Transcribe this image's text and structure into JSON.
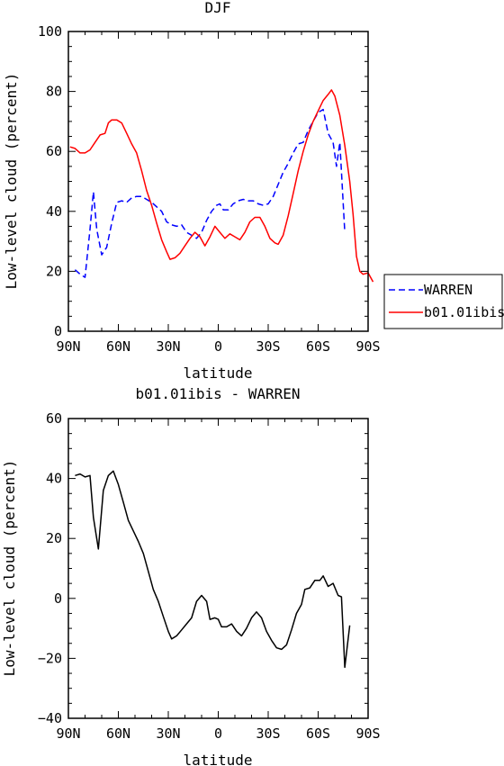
{
  "chart_data": [
    {
      "type": "line",
      "title": "DJF",
      "xlabel": "latitude",
      "ylabel": "Low-level cloud (percent)",
      "xlim": [
        90,
        -90
      ],
      "ylim": [
        0,
        100
      ],
      "xticks": [
        90,
        60,
        30,
        0,
        -30,
        -60,
        -90
      ],
      "xtick_labels": [
        "90N",
        "60N",
        "30N",
        "0",
        "30S",
        "60S",
        "90S"
      ],
      "yticks": [
        0,
        20,
        40,
        60,
        80,
        100
      ],
      "ytick_labels": [
        "0",
        "20",
        "40",
        "60",
        "80",
        "100"
      ],
      "legend_position": "outside-right",
      "series": [
        {
          "name": "WARREN",
          "color": "#0000ff",
          "style": "dashed",
          "points": [
            [
              86,
              20.5
            ],
            [
              83,
              19
            ],
            [
              80,
              18
            ],
            [
              77,
              34
            ],
            [
              75,
              46.5
            ],
            [
              73,
              34
            ],
            [
              70,
              25.5
            ],
            [
              67,
              28
            ],
            [
              64,
              36
            ],
            [
              61,
              43
            ],
            [
              58,
              43.5
            ],
            [
              55,
              43
            ],
            [
              52,
              44.5
            ],
            [
              49,
              45
            ],
            [
              46,
              45
            ],
            [
              43,
              44
            ],
            [
              40,
              43
            ],
            [
              37,
              41.5
            ],
            [
              34,
              40
            ],
            [
              31,
              36.5
            ],
            [
              28,
              35.5
            ],
            [
              25,
              35
            ],
            [
              22,
              35.5
            ],
            [
              19,
              33
            ],
            [
              16,
              32
            ],
            [
              13,
              31
            ],
            [
              10,
              33
            ],
            [
              7,
              37
            ],
            [
              4,
              40
            ],
            [
              1,
              42
            ],
            [
              -1,
              42.5
            ],
            [
              -3,
              40.5
            ],
            [
              -6,
              40.5
            ],
            [
              -9,
              42.5
            ],
            [
              -12,
              43.5
            ],
            [
              -15,
              44
            ],
            [
              -18,
              43.5
            ],
            [
              -21,
              43.5
            ],
            [
              -24,
              42.5
            ],
            [
              -27,
              42
            ],
            [
              -30,
              42.5
            ],
            [
              -33,
              45
            ],
            [
              -36,
              49
            ],
            [
              -39,
              53
            ],
            [
              -42,
              56
            ],
            [
              -45,
              59.5
            ],
            [
              -48,
              62.5
            ],
            [
              -51,
              63
            ],
            [
              -54,
              67
            ],
            [
              -57,
              70
            ],
            [
              -60,
              73
            ],
            [
              -63,
              74
            ],
            [
              -66,
              66
            ],
            [
              -69,
              63
            ],
            [
              -71,
              55
            ],
            [
              -73,
              63
            ],
            [
              -76,
              33
            ]
          ]
        },
        {
          "name": "b01.01ibis",
          "color": "#ff0000",
          "style": "solid",
          "points": [
            [
              89,
              61.5
            ],
            [
              86,
              61
            ],
            [
              83,
              59.5
            ],
            [
              80,
              59.5
            ],
            [
              77,
              60.5
            ],
            [
              74,
              63
            ],
            [
              71,
              65.5
            ],
            [
              68,
              66
            ],
            [
              66,
              69.5
            ],
            [
              64,
              70.5
            ],
            [
              61,
              70.5
            ],
            [
              58,
              69.5
            ],
            [
              55,
              66
            ],
            [
              52,
              62.5
            ],
            [
              49,
              59.5
            ],
            [
              46,
              53.5
            ],
            [
              43,
              47
            ],
            [
              40,
              42
            ],
            [
              37,
              36
            ],
            [
              34,
              30.5
            ],
            [
              31,
              26.5
            ],
            [
              29,
              24
            ],
            [
              26,
              24.5
            ],
            [
              23,
              26
            ],
            [
              20,
              28.5
            ],
            [
              17,
              31
            ],
            [
              14,
              33
            ],
            [
              11,
              31.5
            ],
            [
              8,
              28.5
            ],
            [
              5,
              31.5
            ],
            [
              2,
              35
            ],
            [
              -1,
              33
            ],
            [
              -4,
              31
            ],
            [
              -7,
              32.5
            ],
            [
              -10,
              31.5
            ],
            [
              -13,
              30.5
            ],
            [
              -16,
              33
            ],
            [
              -19,
              36.5
            ],
            [
              -22,
              38
            ],
            [
              -25,
              38
            ],
            [
              -28,
              35
            ],
            [
              -31,
              31
            ],
            [
              -34,
              29.5
            ],
            [
              -36,
              29
            ],
            [
              -39,
              32
            ],
            [
              -42,
              38.5
            ],
            [
              -45,
              46
            ],
            [
              -48,
              53.5
            ],
            [
              -51,
              60
            ],
            [
              -54,
              65.5
            ],
            [
              -57,
              70
            ],
            [
              -60,
              73.5
            ],
            [
              -63,
              77
            ],
            [
              -66,
              79
            ],
            [
              -68,
              80.5
            ],
            [
              -70,
              78.5
            ],
            [
              -73,
              72
            ],
            [
              -76,
              62
            ],
            [
              -79,
              50
            ],
            [
              -81,
              39
            ],
            [
              -83,
              25
            ],
            [
              -85,
              20
            ],
            [
              -87,
              19
            ],
            [
              -90,
              19.5
            ],
            [
              -93,
              16.5
            ]
          ]
        }
      ]
    },
    {
      "type": "line",
      "title": "b01.01ibis - WARREN",
      "xlabel": "latitude",
      "ylabel": "Low-level cloud (percent)",
      "xlim": [
        90,
        -90
      ],
      "ylim": [
        -40,
        60
      ],
      "xticks": [
        90,
        60,
        30,
        0,
        -30,
        -60,
        -90
      ],
      "xtick_labels": [
        "90N",
        "60N",
        "30N",
        "0",
        "30S",
        "60S",
        "90S"
      ],
      "yticks": [
        -40,
        -20,
        0,
        20,
        40,
        60
      ],
      "ytick_labels": [
        "−40",
        "−20",
        "0",
        "20",
        "40",
        "60"
      ],
      "series": [
        {
          "color": "#000000",
          "style": "solid",
          "points": [
            [
              86,
              41
            ],
            [
              83,
              41.5
            ],
            [
              80,
              40.5
            ],
            [
              77,
              41
            ],
            [
              75,
              27
            ],
            [
              72,
              16.5
            ],
            [
              69,
              36
            ],
            [
              66,
              41
            ],
            [
              63,
              42.5
            ],
            [
              60,
              38
            ],
            [
              57,
              32
            ],
            [
              54,
              26
            ],
            [
              51,
              22.5
            ],
            [
              48,
              19
            ],
            [
              45,
              15
            ],
            [
              42,
              9
            ],
            [
              39,
              3
            ],
            [
              36,
              -1
            ],
            [
              33,
              -6
            ],
            [
              30,
              -11
            ],
            [
              28,
              -13.5
            ],
            [
              25,
              -12.5
            ],
            [
              22,
              -10.5
            ],
            [
              19,
              -8.5
            ],
            [
              16,
              -6.5
            ],
            [
              13,
              -1
            ],
            [
              10,
              1
            ],
            [
              7,
              -1
            ],
            [
              5,
              -7
            ],
            [
              2,
              -6.5
            ],
            [
              0,
              -7
            ],
            [
              -2,
              -9.5
            ],
            [
              -5,
              -9.5
            ],
            [
              -8,
              -8.5
            ],
            [
              -11,
              -11
            ],
            [
              -14,
              -12.5
            ],
            [
              -17,
              -10
            ],
            [
              -20,
              -6.5
            ],
            [
              -23,
              -4.5
            ],
            [
              -26,
              -6.5
            ],
            [
              -29,
              -11
            ],
            [
              -32,
              -14
            ],
            [
              -35,
              -16.5
            ],
            [
              -38,
              -17
            ],
            [
              -41,
              -15.5
            ],
            [
              -44,
              -10.5
            ],
            [
              -47,
              -5
            ],
            [
              -50,
              -2
            ],
            [
              -52,
              3
            ],
            [
              -55,
              3.5
            ],
            [
              -58,
              6
            ],
            [
              -61,
              6
            ],
            [
              -63,
              7.5
            ],
            [
              -66,
              4
            ],
            [
              -69,
              5
            ],
            [
              -72,
              1
            ],
            [
              -74,
              0.5
            ],
            [
              -76,
              -23
            ],
            [
              -79,
              -9
            ]
          ]
        }
      ]
    }
  ],
  "legend": {
    "items": [
      {
        "label": "WARREN"
      },
      {
        "label": "b01.01ibis"
      }
    ]
  }
}
